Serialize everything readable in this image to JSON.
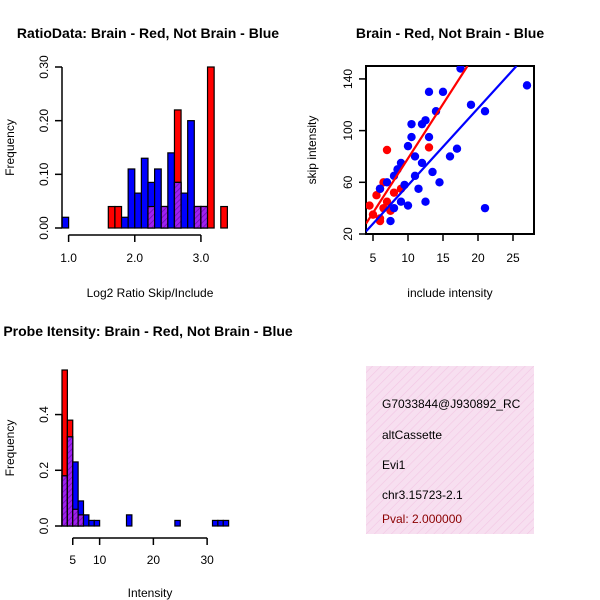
{
  "colors": {
    "brain": "#ff0000",
    "not_brain": "#0000ff",
    "overlap": "#a020f0",
    "info_bg": "#f7dff0",
    "pval": "#8b0000"
  },
  "info_panel": {
    "lines": [
      "G7033844@J930892_RC",
      "altCassette",
      "Evi1",
      "chr3.15723-2.1"
    ],
    "pval": "Pval: 2.000000"
  },
  "chart_data": [
    {
      "type": "histogram",
      "title": "RatioData: Brain - Red, Not Brain - Blue",
      "xlabel": "Log2 Ratio Skip/Include",
      "ylabel": "Frequency",
      "xlim": [
        0.9,
        3.5
      ],
      "ylim": [
        0,
        0.3
      ],
      "xticks": [
        1.0,
        2.0,
        3.0
      ],
      "xtick_labels": [
        "1.0",
        "2.0",
        "3.0"
      ],
      "yticks": [
        0,
        0.1,
        0.2,
        0.3
      ],
      "ytick_labels": [
        "0.00",
        "0.10",
        "0.20",
        "0.30"
      ],
      "bin_edges": [
        0.9,
        1.0,
        1.1,
        1.2,
        1.3,
        1.4,
        1.5,
        1.6,
        1.7,
        1.8,
        1.9,
        2.0,
        2.1,
        2.2,
        2.3,
        2.4,
        2.5,
        2.6,
        2.7,
        2.8,
        2.9,
        3.0,
        3.1,
        3.2,
        3.3,
        3.4,
        3.5
      ],
      "series": [
        {
          "name": "Brain",
          "values": [
            0,
            0,
            0,
            0,
            0,
            0,
            0,
            0.04,
            0.04,
            0,
            0,
            0,
            0,
            0.04,
            0,
            0.04,
            0,
            0.22,
            0,
            0,
            0.04,
            0.04,
            0.3,
            0,
            0.04,
            0
          ]
        },
        {
          "name": "Not Brain",
          "values": [
            0.02,
            0,
            0,
            0,
            0,
            0,
            0,
            0,
            0,
            0.02,
            0.11,
            0.065,
            0.13,
            0.085,
            0.11,
            0.04,
            0.14,
            0.085,
            0.065,
            0.2,
            0.04,
            0.04,
            0,
            0,
            0,
            0
          ]
        }
      ]
    },
    {
      "type": "scatter",
      "title": "Brain - Red, Not Brain - Blue",
      "xlabel": "include intensity",
      "ylabel": "skip intensity",
      "xlim": [
        4,
        28
      ],
      "ylim": [
        20,
        150
      ],
      "xticks": [
        5,
        10,
        15,
        20,
        25
      ],
      "xtick_labels": [
        "5",
        "10",
        "15",
        "20",
        "25"
      ],
      "yticks": [
        20,
        60,
        100,
        140
      ],
      "ytick_labels": [
        "20",
        "60",
        "100",
        "140"
      ],
      "series": [
        {
          "name": "Brain",
          "points": [
            [
              4.5,
              42
            ],
            [
              5.5,
              50
            ],
            [
              6,
              55
            ],
            [
              6.5,
              60
            ],
            [
              7,
              45
            ],
            [
              7.5,
              38
            ],
            [
              5,
              35
            ],
            [
              6,
              32
            ],
            [
              8,
              52
            ],
            [
              6.5,
              40
            ],
            [
              7,
              85
            ],
            [
              13,
              87
            ],
            [
              9,
              55
            ],
            [
              6,
              30
            ]
          ],
          "fit": {
            "x": [
              4,
              18.5
            ],
            "y": [
              28,
              150
            ]
          }
        },
        {
          "name": "Not Brain",
          "points": [
            [
              6,
              55
            ],
            [
              7,
              60
            ],
            [
              7.5,
              30
            ],
            [
              8,
              40
            ],
            [
              8.5,
              70
            ],
            [
              9,
              45
            ],
            [
              9.5,
              58
            ],
            [
              10,
              88
            ],
            [
              10,
              42
            ],
            [
              10.5,
              105
            ],
            [
              11,
              65
            ],
            [
              11.5,
              55
            ],
            [
              12,
              105
            ],
            [
              12,
              75
            ],
            [
              12.5,
              45
            ],
            [
              13,
              130
            ],
            [
              13,
              95
            ],
            [
              13.5,
              68
            ],
            [
              14,
              115
            ],
            [
              14.5,
              60
            ],
            [
              15,
              130
            ],
            [
              16,
              80
            ],
            [
              17.5,
              148
            ],
            [
              17,
              86
            ],
            [
              19,
              120
            ],
            [
              21,
              115
            ],
            [
              21,
              40
            ],
            [
              27,
              135
            ],
            [
              10.5,
              95
            ],
            [
              11,
              80
            ],
            [
              12.5,
              108
            ],
            [
              9,
              75
            ],
            [
              8,
              65
            ]
          ],
          "fit": {
            "x": [
              4,
              25.5
            ],
            "y": [
              22,
              150
            ]
          }
        }
      ]
    },
    {
      "type": "histogram",
      "title": "Probe Itensity: Brain - Red, Not Brain - Blue",
      "xlabel": "Intensity",
      "ylabel": "Frequency",
      "xlim": [
        3,
        35
      ],
      "ylim": [
        0,
        0.56
      ],
      "xticks": [
        5,
        10,
        20,
        30
      ],
      "xtick_labels": [
        "5",
        "10",
        "20",
        "30"
      ],
      "yticks": [
        0,
        0.2,
        0.4
      ],
      "ytick_labels": [
        "0.0",
        "0.2",
        "0.4"
      ],
      "bin_edges": [
        3,
        4,
        5,
        6,
        7,
        8,
        9,
        10,
        11,
        12,
        13,
        14,
        15,
        16,
        17,
        18,
        19,
        20,
        21,
        22,
        23,
        24,
        25,
        26,
        27,
        28,
        29,
        30,
        31,
        32,
        33,
        34,
        35
      ],
      "series": [
        {
          "name": "Brain",
          "values": [
            0.56,
            0.38,
            0.06,
            0.04,
            0,
            0,
            0,
            0,
            0,
            0,
            0,
            0,
            0,
            0,
            0,
            0,
            0,
            0,
            0,
            0,
            0,
            0,
            0,
            0,
            0,
            0,
            0,
            0,
            0,
            0,
            0,
            0
          ]
        },
        {
          "name": "Not Brain",
          "values": [
            0.18,
            0.32,
            0.23,
            0.09,
            0.04,
            0.02,
            0.02,
            0,
            0,
            0,
            0,
            0,
            0.04,
            0,
            0,
            0,
            0,
            0,
            0,
            0,
            0,
            0.02,
            0,
            0,
            0,
            0,
            0,
            0,
            0.02,
            0.02,
            0.02,
            0
          ]
        }
      ]
    }
  ]
}
